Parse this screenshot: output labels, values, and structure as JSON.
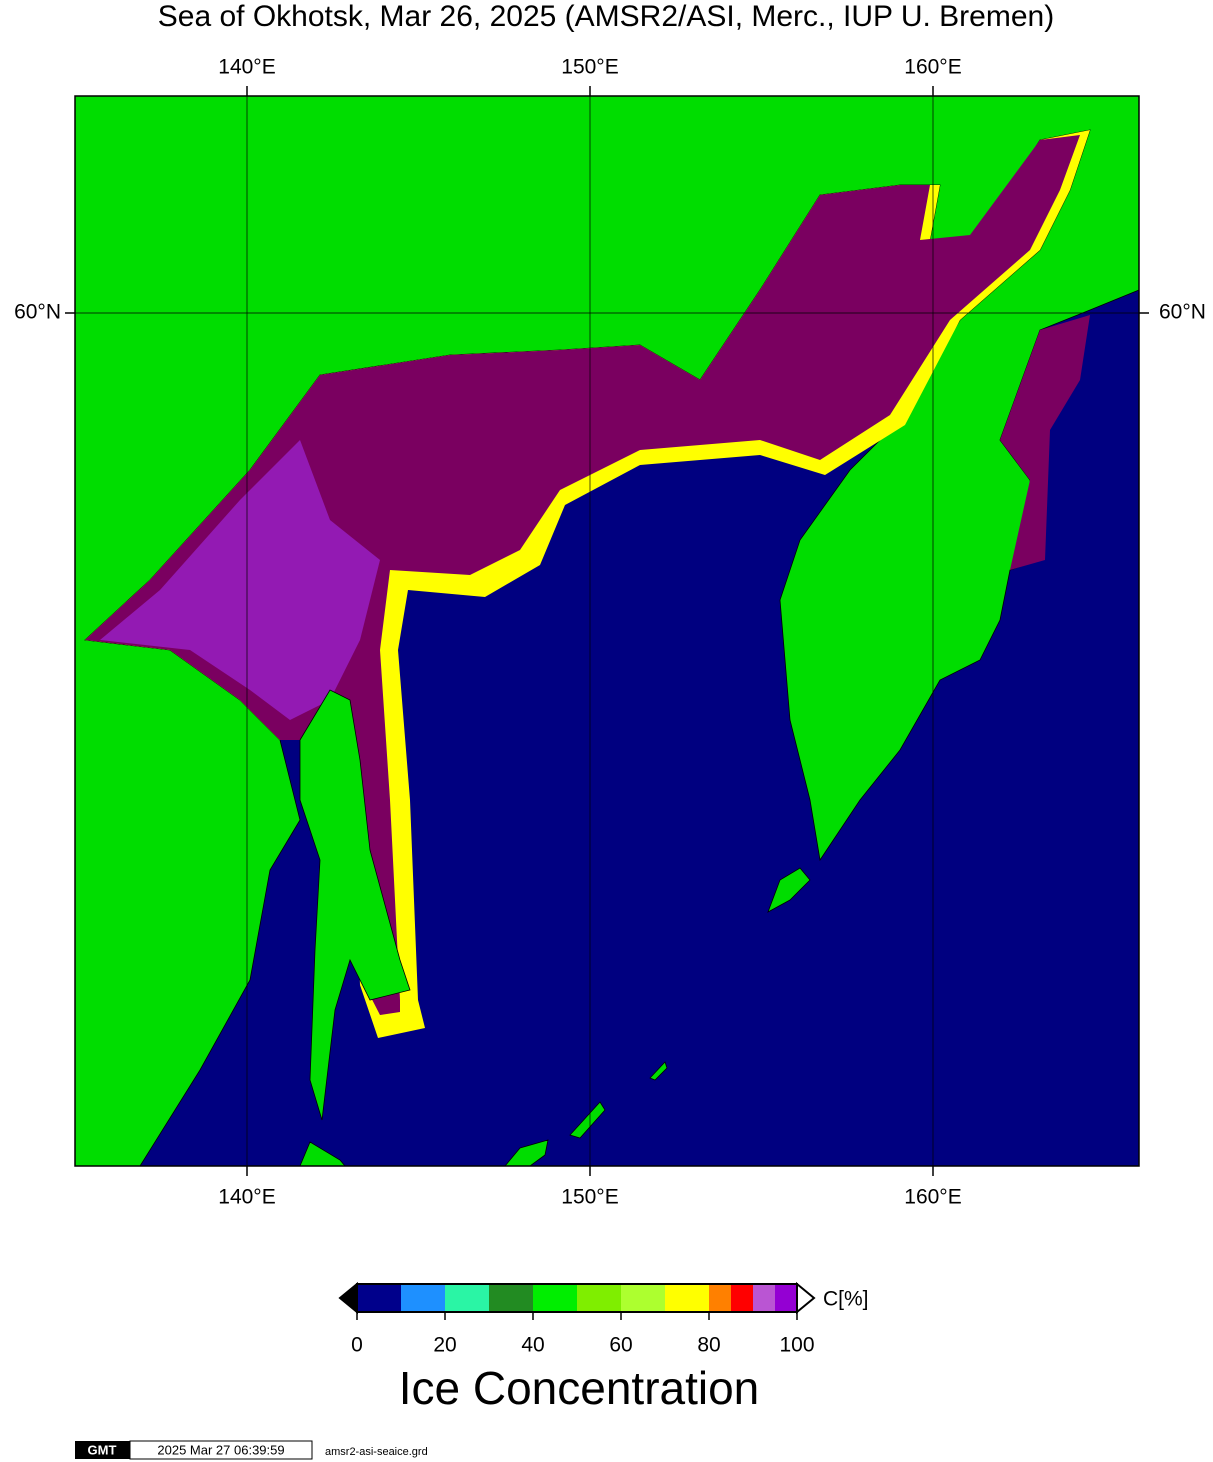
{
  "title": "Sea of Okhotsk, Mar 26, 2025 (AMSR2/ASI, Merc., IUP U. Bremen)",
  "map": {
    "lon_ticks": [
      {
        "value": 140,
        "label": "140°E"
      },
      {
        "value": 150,
        "label": "150°E"
      },
      {
        "value": 160,
        "label": "160°E"
      }
    ],
    "lat_ticks": [
      {
        "value": 60,
        "label": "60°N"
      }
    ]
  },
  "colorbar": {
    "ticks": [
      0,
      20,
      40,
      60,
      80,
      100
    ],
    "unit": "C[%]",
    "label": "Ice Concentration",
    "bounds": [
      0,
      10,
      20,
      30,
      40,
      50,
      60,
      70,
      80,
      85,
      90,
      95,
      100
    ],
    "colors": [
      "#00008b",
      "#1e90ff",
      "#2af5a5",
      "#228b22",
      "#00ee00",
      "#7fee00",
      "#adff2f",
      "#ffff00",
      "#ff8000",
      "#ff0000",
      "#ba55d3",
      "#9400d3"
    ]
  },
  "footer": {
    "logo": "GMT",
    "timestamp": "2025 Mar 27 06:39:59",
    "file": "amsr2-asi-seaice.grd"
  }
}
